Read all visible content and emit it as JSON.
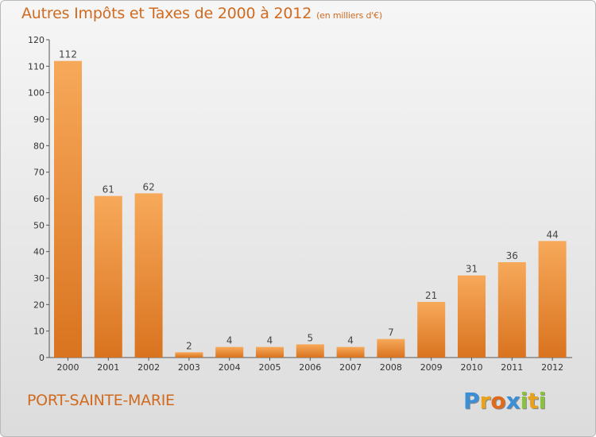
{
  "title": "Autres Impôts et Taxes de 2000 à 2012",
  "title_unit": "(en milliers d'€)",
  "commune": "PORT-SAINTE-MARIE",
  "logo": {
    "letters": [
      "P",
      "r",
      "o",
      "x",
      "i",
      "t",
      "i"
    ],
    "colors": [
      "#3a8fd6",
      "#e8a21b",
      "#e06a1c",
      "#3a8fd6",
      "#8ac23d",
      "#e8a21b",
      "#8ac23d"
    ]
  },
  "chart_data": {
    "type": "bar",
    "categories": [
      "2000",
      "2001",
      "2002",
      "2003",
      "2004",
      "2005",
      "2006",
      "2007",
      "2008",
      "2009",
      "2010",
      "2011",
      "2012"
    ],
    "values": [
      112,
      61,
      62,
      2,
      4,
      4,
      5,
      4,
      7,
      21,
      31,
      36,
      44
    ],
    "ylim": [
      0,
      120
    ],
    "yticks": [
      0,
      10,
      20,
      30,
      40,
      50,
      60,
      70,
      80,
      90,
      100,
      110,
      120
    ],
    "grid": false,
    "bar_color": "#f0923a"
  }
}
